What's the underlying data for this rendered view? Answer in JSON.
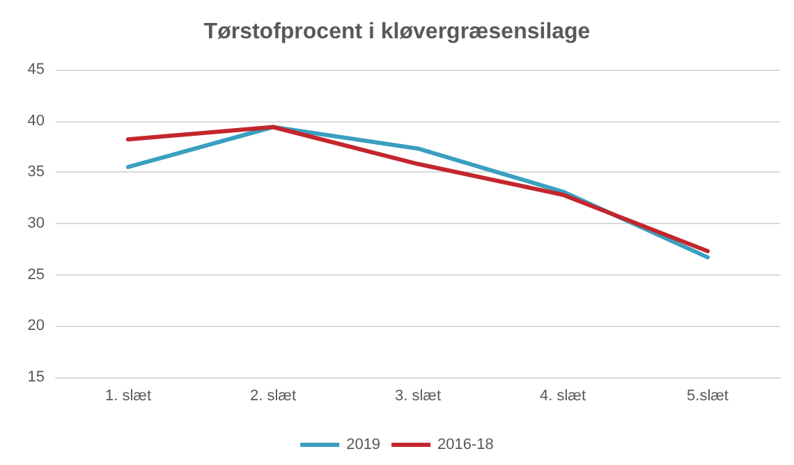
{
  "chart_data": {
    "type": "line",
    "title": "Tørstofprocent i kløvergræsensilage",
    "categories": [
      "1. slæt",
      "2. slæt",
      "3. slæt",
      "4. slæt",
      "5.slæt"
    ],
    "series": [
      {
        "name": "2019",
        "color": "#3a9fc0",
        "values": [
          35.5,
          39.4,
          37.3,
          33.1,
          26.7
        ]
      },
      {
        "name": "2016-18",
        "color": "#c3262c",
        "values": [
          38.2,
          39.4,
          35.8,
          32.8,
          27.3
        ]
      }
    ],
    "ylim": [
      15,
      45
    ],
    "yticks": [
      15,
      20,
      25,
      30,
      35,
      40,
      45
    ],
    "grid": "y",
    "legend": "bottom",
    "marker": "none",
    "line_style": "solid"
  }
}
